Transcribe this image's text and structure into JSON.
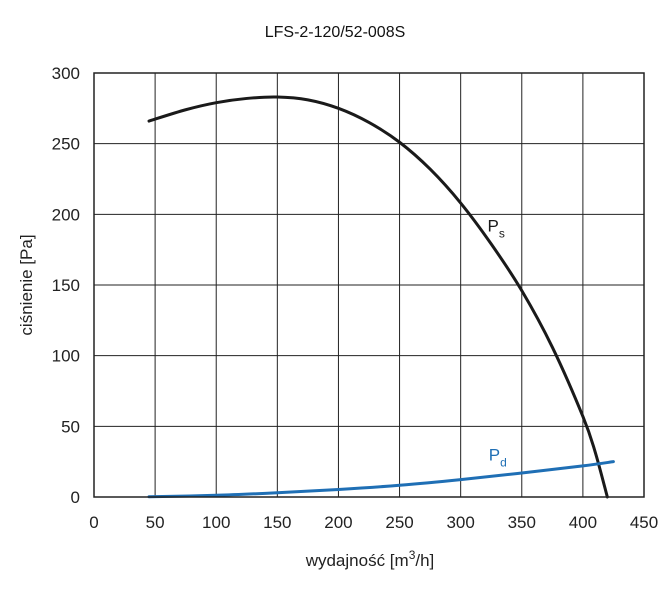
{
  "chart_data": {
    "type": "line",
    "title": "LFS-2-120/52-008S",
    "xlabel": {
      "main": "wydajność [m",
      "sup": "3",
      "tail": "/h]"
    },
    "ylabel": "ciśnienie [Pa]",
    "xlim": [
      0,
      450
    ],
    "ylim": [
      0,
      300
    ],
    "xticks": [
      0,
      50,
      100,
      150,
      200,
      250,
      300,
      350,
      400,
      450
    ],
    "yticks": [
      0,
      50,
      100,
      150,
      200,
      250,
      300
    ],
    "xtick_labels": [
      "0",
      "50",
      "100",
      "150",
      "200",
      "250",
      "300",
      "350",
      "400",
      "450"
    ],
    "ytick_labels": [
      "0",
      "50",
      "100",
      "150",
      "200",
      "250",
      "300"
    ],
    "grid": true,
    "series": [
      {
        "name": "P",
        "subscript": "s",
        "color": "#1a1a1a",
        "points": [
          [
            45,
            266
          ],
          [
            75,
            274
          ],
          [
            100,
            279
          ],
          [
            125,
            282
          ],
          [
            150,
            283
          ],
          [
            175,
            281
          ],
          [
            200,
            275
          ],
          [
            225,
            265
          ],
          [
            250,
            251
          ],
          [
            275,
            232
          ],
          [
            300,
            208
          ],
          [
            325,
            179
          ],
          [
            350,
            146
          ],
          [
            375,
            106
          ],
          [
            400,
            57
          ],
          [
            410,
            32
          ],
          [
            420,
            0
          ]
        ]
      },
      {
        "name": "P",
        "subscript": "d",
        "color": "#1f6fb5",
        "points": [
          [
            45,
            0.2
          ],
          [
            100,
            1.2
          ],
          [
            150,
            3.0
          ],
          [
            200,
            5.3
          ],
          [
            250,
            8.3
          ],
          [
            300,
            12.3
          ],
          [
            350,
            17.0
          ],
          [
            400,
            22.0
          ],
          [
            425,
            25.0
          ]
        ]
      }
    ]
  }
}
